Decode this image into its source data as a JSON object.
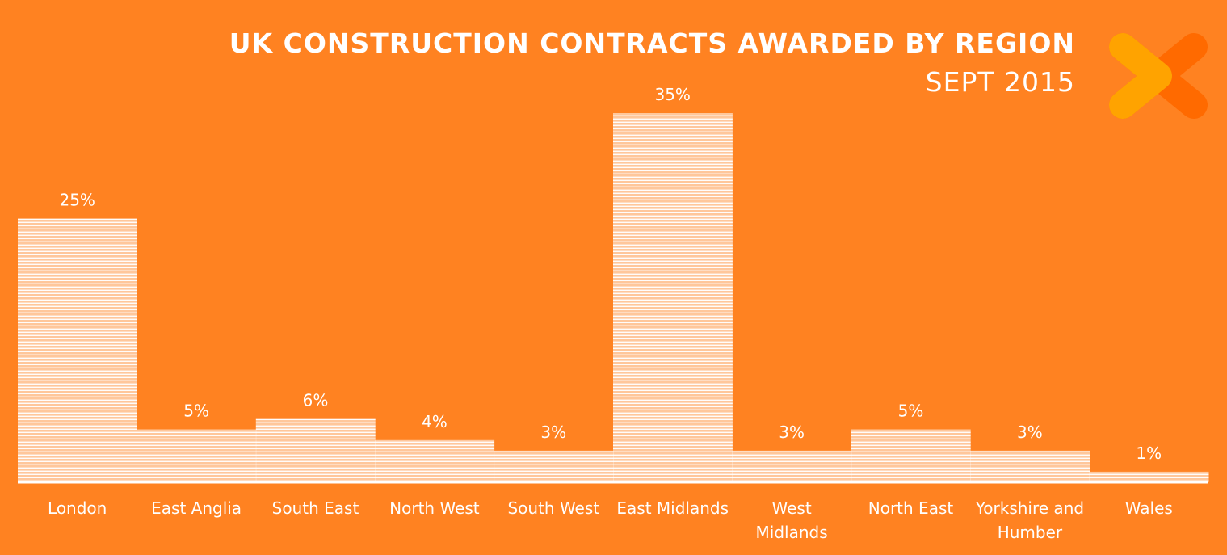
{
  "header": {
    "title": "UK CONSTRUCTION CONTRACTS AWARDED BY REGION",
    "subtitle": "SEPT 2015"
  },
  "logo": {
    "icon": "x-logo-icon",
    "colors": [
      "#ffa300",
      "#ff6a00"
    ]
  },
  "colors": {
    "background": "#ff8221",
    "bar": "#ffffff"
  },
  "chart_data": {
    "type": "bar",
    "title": "UK CONSTRUCTION CONTRACTS AWARDED BY REGION",
    "subtitle": "SEPT 2015",
    "categories": [
      [
        "London"
      ],
      [
        "East Anglia"
      ],
      [
        "South East"
      ],
      [
        "North West"
      ],
      [
        "South West"
      ],
      [
        "East Midlands"
      ],
      [
        "West",
        "Midlands"
      ],
      [
        "North East"
      ],
      [
        "Yorkshire and",
        "Humber"
      ],
      [
        "Wales"
      ]
    ],
    "values": [
      25,
      5,
      6,
      4,
      3,
      35,
      3,
      5,
      3,
      1
    ],
    "value_labels": [
      "25%",
      "5%",
      "6%",
      "4%",
      "3%",
      "35%",
      "3%",
      "5%",
      "3%",
      "1%"
    ],
    "unit": "%",
    "ylim": [
      0,
      35
    ],
    "grid": false,
    "legend": "none"
  }
}
